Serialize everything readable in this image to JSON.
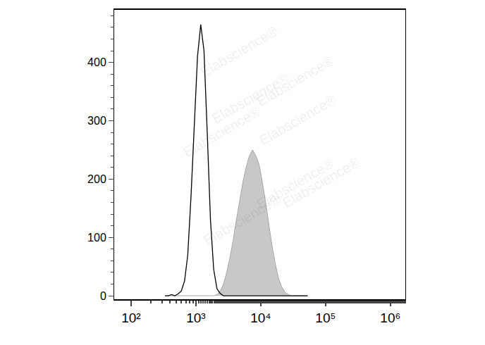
{
  "chart_data": {
    "type": "histogram",
    "log": "x",
    "grid": false,
    "watermark": "Elabscience®",
    "bins": [
      316,
      355,
      398,
      447,
      501,
      562,
      631,
      708,
      794,
      891,
      1000,
      1122,
      1259,
      1413,
      1585,
      1778,
      1995,
      2239,
      2512,
      2818,
      3162,
      3548,
      3981,
      4467,
      5012,
      5623,
      6310,
      7079,
      7943,
      8913,
      10000,
      11220,
      12589,
      14125,
      15849,
      17783,
      19953,
      22387,
      25119,
      28184,
      31623,
      35481,
      39811,
      44668,
      50119,
      56234
    ],
    "series": [
      {
        "type": "area",
        "color": "#c8c8c8",
        "values": [
          0,
          0,
          0,
          0,
          0,
          0,
          0,
          0,
          0,
          0,
          0,
          0,
          0,
          0,
          0,
          0,
          2,
          8,
          20,
          40,
          65,
          95,
          130,
          165,
          195,
          220,
          240,
          250,
          240,
          225,
          195,
          160,
          120,
          85,
          55,
          30,
          15,
          6,
          2,
          0,
          0,
          0,
          0,
          0,
          0
        ]
      },
      {
        "type": "line",
        "color": "#000000",
        "values": [
          0,
          0,
          2,
          0,
          3,
          8,
          25,
          70,
          170,
          300,
          410,
          465,
          420,
          280,
          130,
          45,
          12,
          4,
          0,
          0,
          0,
          0,
          0,
          0,
          0,
          0,
          0,
          0,
          0,
          0,
          0,
          0,
          0,
          0,
          0,
          0,
          0,
          0,
          0,
          0,
          0,
          0,
          0,
          0,
          0
        ]
      }
    ],
    "xlim": [
      55,
      1700000
    ],
    "xticks": [
      {
        "value": 100,
        "label": "10²"
      },
      {
        "value": 1000,
        "label": "10³"
      },
      {
        "value": 10000,
        "label": "10⁴"
      },
      {
        "value": 100000,
        "label": "10⁵"
      },
      {
        "value": 1000000,
        "label": "10⁶"
      }
    ],
    "ylim": [
      -6,
      490
    ],
    "yticks": [
      0,
      100,
      200,
      300,
      400
    ]
  }
}
